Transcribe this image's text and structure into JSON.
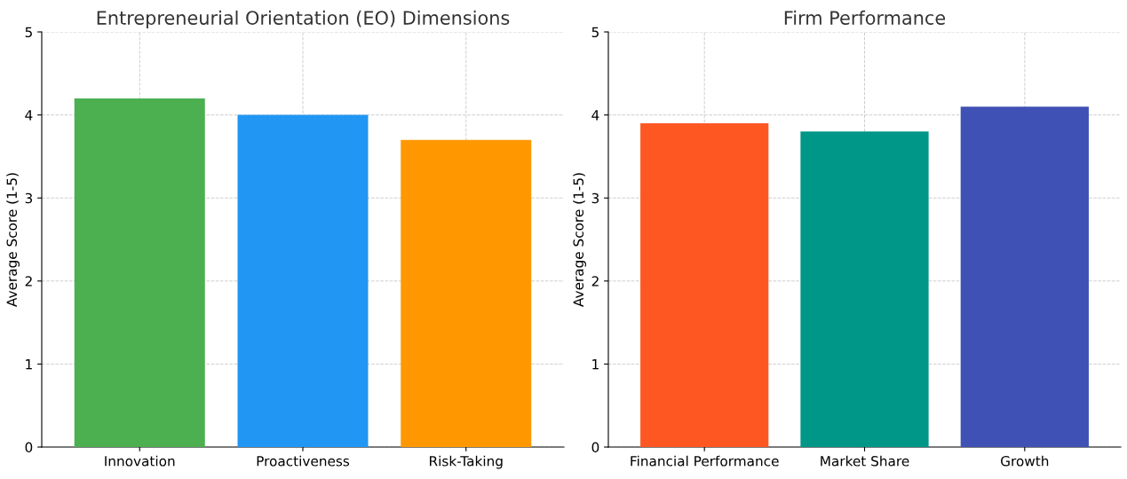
{
  "chart_data": [
    {
      "type": "bar",
      "title": "Entrepreneurial Orientation (EO) Dimensions",
      "ylabel": "Average Score (1-5)",
      "categories": [
        "Innovation",
        "Proactiveness",
        "Risk-Taking"
      ],
      "values": [
        4.2,
        4.0,
        3.7
      ],
      "colors": [
        "#4caf50",
        "#2196f3",
        "#ff9800"
      ],
      "ylim": [
        0,
        5
      ],
      "yticks": [
        0,
        1,
        2,
        3,
        4,
        5
      ],
      "grid": true
    },
    {
      "type": "bar",
      "title": "Firm Performance",
      "ylabel": "Average Score (1-5)",
      "categories": [
        "Financial Performance",
        "Market Share",
        "Growth"
      ],
      "values": [
        3.9,
        3.8,
        4.1
      ],
      "colors": [
        "#ff5722",
        "#009688",
        "#3f51b5"
      ],
      "ylim": [
        0,
        5
      ],
      "yticks": [
        0,
        1,
        2,
        3,
        4,
        5
      ],
      "grid": true
    }
  ]
}
